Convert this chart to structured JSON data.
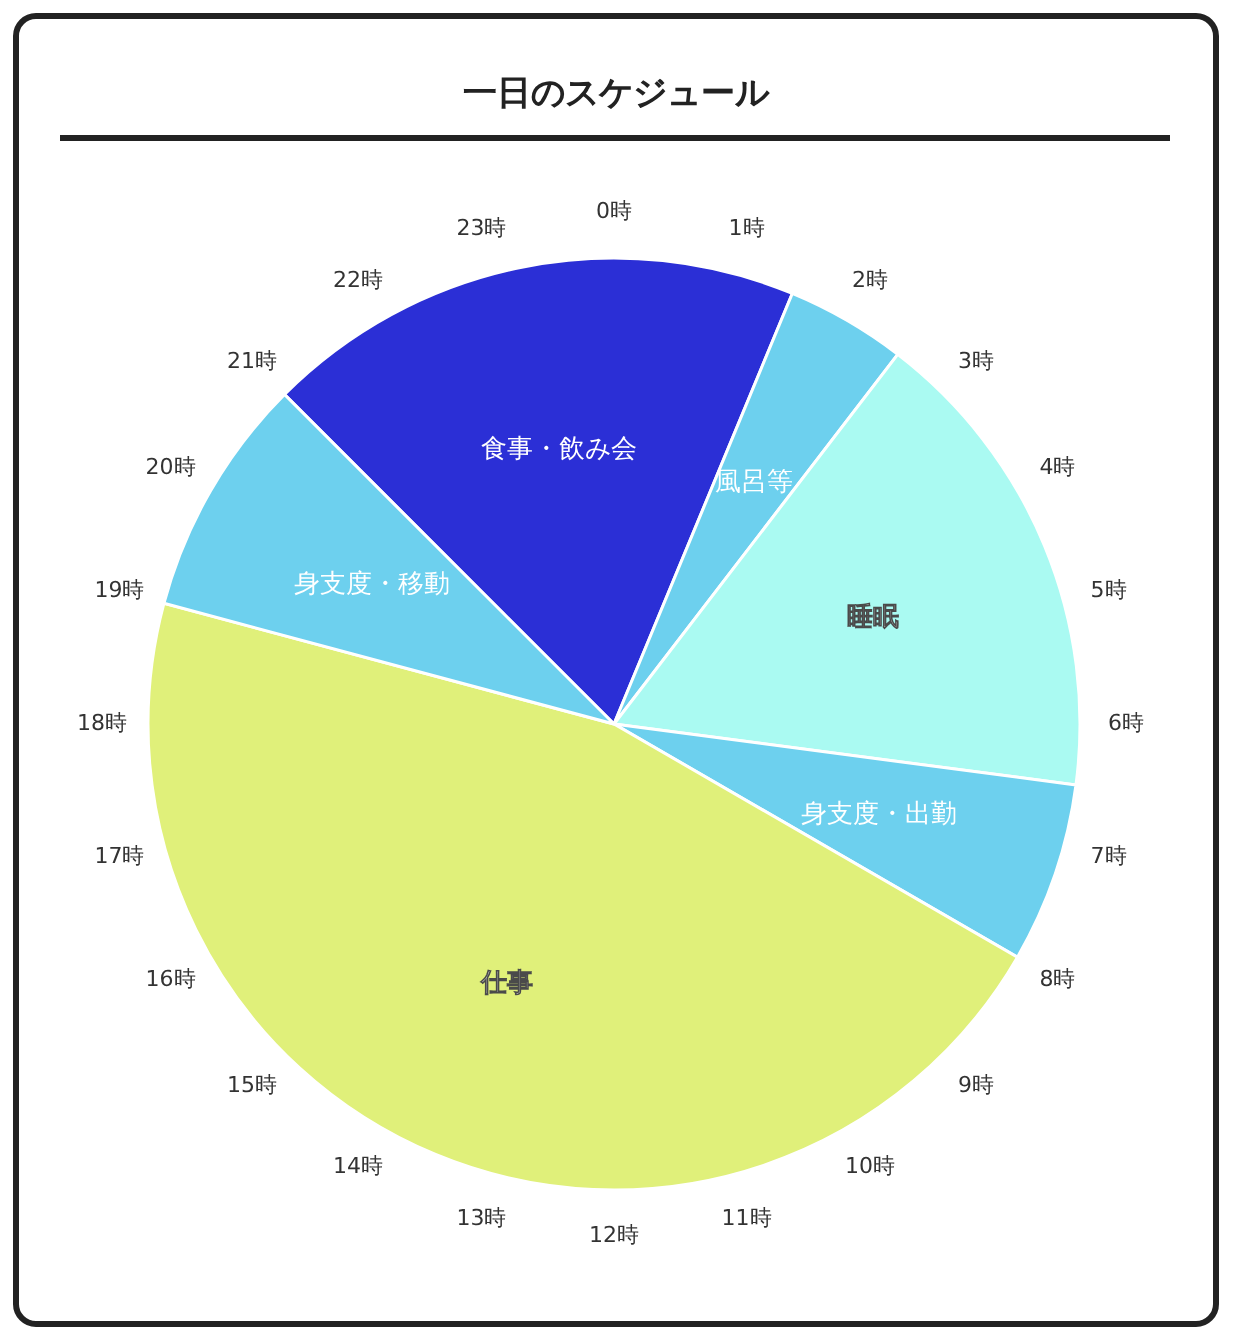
{
  "chart_data": {
    "type": "pie",
    "title": "一日のスケジュール",
    "categories": [
      "食事・飲み会",
      "風呂等",
      "睡眠",
      "身支度・出勤",
      "仕事",
      "身支度・移動"
    ],
    "values": [
      18.75,
      4.17,
      16.67,
      6.25,
      45.83,
      8.33
    ],
    "colors": [
      "#2b2fd6",
      "#6dd0ee",
      "#aafaf2",
      "#6dd0ee",
      "#e0f07a",
      "#6dd0ee"
    ],
    "legend": false,
    "annotations": [
      "0時",
      "1時",
      "2時",
      "3時",
      "4時",
      "5時",
      "6時",
      "7時",
      "8時",
      "9時",
      "10時",
      "11時",
      "12時",
      "13時",
      "14時",
      "15時",
      "16時",
      "17時",
      "18時",
      "19時",
      "20時",
      "21時",
      "22時",
      "23時"
    ]
  }
}
